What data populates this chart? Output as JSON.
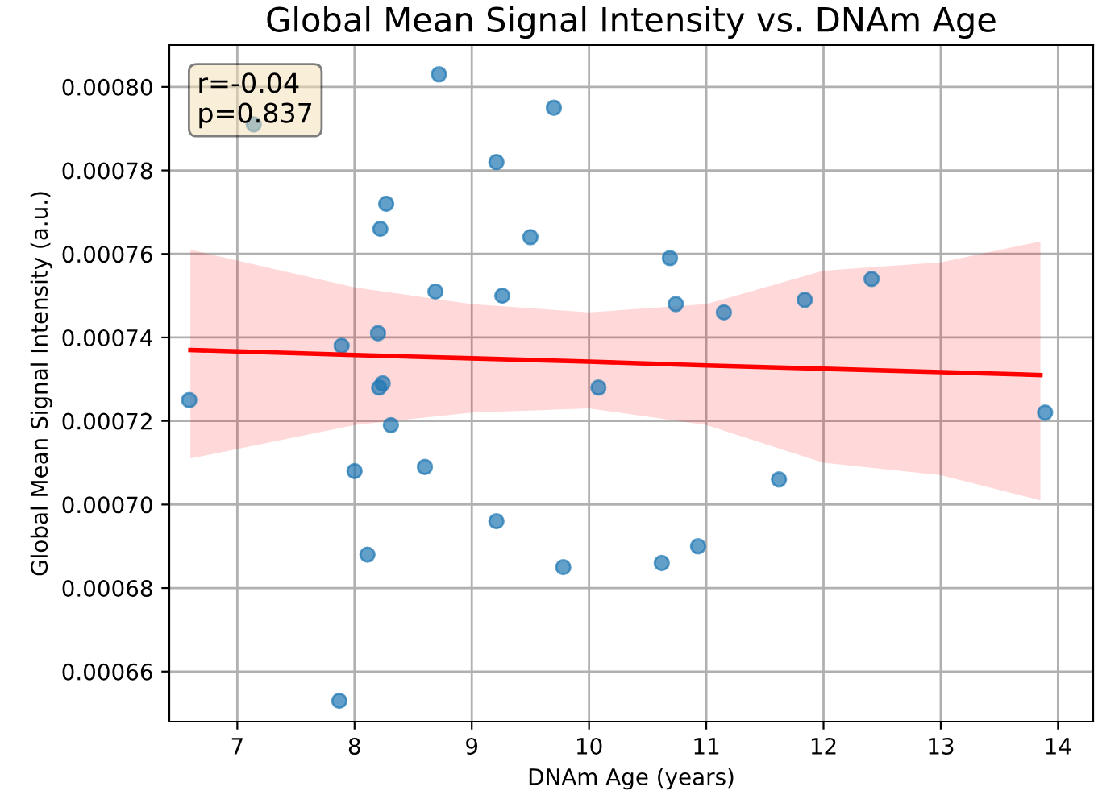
{
  "chart_data": {
    "type": "scatter",
    "title": "Global Mean Signal Intensity vs. DNAm Age",
    "xlabel": "DNAm Age (years)",
    "ylabel": "Global Mean Signal Intensity (a.u.)",
    "annotations": [
      "r=-0.04\np=0.837"
    ],
    "series": [
      {
        "marker": "circle",
        "color": "#1f77b4",
        "x": [
          6.59,
          7.14,
          8.72,
          9.7,
          9.21,
          8.27,
          8.22,
          9.5,
          8.69,
          9.26,
          7.89,
          8.2,
          8.21,
          8.24,
          10.08,
          8.31,
          8.6,
          8.0,
          9.21,
          8.11,
          9.78,
          7.87,
          10.69,
          10.74,
          11.15,
          11.84,
          12.41,
          13.89,
          11.62,
          10.93,
          10.62
        ],
        "values": [
          0.000725,
          0.000791,
          0.000803,
          0.000795,
          0.000782,
          0.000772,
          0.000766,
          0.000764,
          0.000751,
          0.00075,
          0.000738,
          0.000741,
          0.000728,
          0.000729,
          0.000728,
          0.000719,
          0.000709,
          0.000708,
          0.000696,
          0.000688,
          0.000685,
          0.000653,
          0.000759,
          0.000748,
          0.000746,
          0.000749,
          0.000754,
          0.000722,
          0.000706,
          0.00069,
          0.000686
        ]
      },
      {
        "type": "line",
        "marker": "none",
        "color": "#ff0000",
        "x": [
          6.6,
          8,
          9,
          10,
          11,
          12,
          13,
          13.85
        ],
        "values": [
          0.000737,
          0.0007358,
          0.000735,
          0.0007342,
          0.0007333,
          0.0007325,
          0.0007317,
          0.000731
        ],
        "lower": [
          0.000711,
          0.000719,
          0.000722,
          0.000723,
          0.000719,
          0.00071,
          0.000707,
          0.000701
        ],
        "upper": [
          0.000761,
          0.000752,
          0.000748,
          0.000746,
          0.000748,
          0.000756,
          0.000758,
          0.000763
        ]
      }
    ],
    "xlim": [
      6.42,
      14.3
    ],
    "xticks": [
      7,
      8,
      9,
      10,
      11,
      12,
      13,
      14
    ],
    "ylim": [
      0.000648,
      0.00081
    ],
    "yticks": [
      {
        "value": 0.00066,
        "label": "0.00066"
      },
      {
        "value": 0.00068,
        "label": "0.00068"
      },
      {
        "value": 0.0007,
        "label": "0.00070"
      },
      {
        "value": 0.00072,
        "label": "0.00072"
      },
      {
        "value": 0.00074,
        "label": "0.00074"
      },
      {
        "value": 0.00076,
        "label": "0.00076"
      },
      {
        "value": 0.00078,
        "label": "0.00078"
      },
      {
        "value": 0.0008,
        "label": "0.00080"
      }
    ],
    "grid": true
  }
}
